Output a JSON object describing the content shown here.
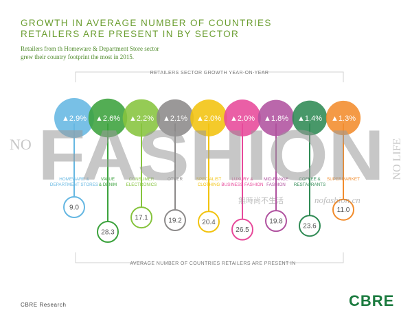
{
  "title_line1": "GROWTH IN AVERAGE NUMBER OF COUNTRIES",
  "title_line2": "RETAILERS ARE PRESENT IN BY SECTOR",
  "subtitle_line1": "Retailers from th Homeware & Department Store sector",
  "subtitle_line2": "grew their country footprint the most in 2015.",
  "watermark": {
    "big_text": "FASHION",
    "left_text": "NO",
    "right_text": "NO LIFE",
    "chinese": "無時尚不生活",
    "site": "nofashion.cn"
  },
  "footer": {
    "source": "CBRE Research",
    "logo": "CBRE"
  },
  "chart_data": {
    "type": "bubble-lollipop",
    "top_label": "RETAILERS SECTOR GROWTH YEAR-ON-YEAR",
    "bottom_label": "AVERAGE NUMBER OF COUNTRIES RETAILERS ARE PRESENT IN",
    "growth_unit": "%",
    "sectors": [
      {
        "label_lines": [
          "HOMEWARE &",
          "DEPARTMENT STORES"
        ],
        "growth": 2.9,
        "growth_label": "▲2.9%",
        "countries": 9.0,
        "countries_label": "9.0",
        "color": "#65b7e2"
      },
      {
        "label_lines": [
          "VALUE",
          "& DENIM"
        ],
        "growth": 2.6,
        "growth_label": "▲2.6%",
        "countries": 28.3,
        "countries_label": "28.3",
        "color": "#3ba23c"
      },
      {
        "label_lines": [
          "CONSUMER",
          "ELECTRONICS"
        ],
        "growth": 2.2,
        "growth_label": "▲2.2%",
        "countries": 17.1,
        "countries_label": "17.1",
        "color": "#86c43e"
      },
      {
        "label_lines": [
          "OTHER"
        ],
        "growth": 2.1,
        "growth_label": "▲2.1%",
        "countries": 19.2,
        "countries_label": "19.2",
        "color": "#8c8a8a"
      },
      {
        "label_lines": [
          "SPECIALIST",
          "CLOTHING"
        ],
        "growth": 2.0,
        "growth_label": "▲2.0%",
        "countries": 20.4,
        "countries_label": "20.4",
        "color": "#f2c30e"
      },
      {
        "label_lines": [
          "LUXURY &",
          "BUSINESS FASHION"
        ],
        "growth": 2.0,
        "growth_label": "▲2.0%",
        "countries": 26.5,
        "countries_label": "26.5",
        "color": "#e7499a"
      },
      {
        "label_lines": [
          "MID-RANGE",
          "FASHION"
        ],
        "growth": 1.8,
        "growth_label": "▲1.8%",
        "countries": 19.8,
        "countries_label": "19.8",
        "color": "#b0529f"
      },
      {
        "label_lines": [
          "COFFEE &",
          "RESTAURANTS"
        ],
        "growth": 1.4,
        "growth_label": "▲1.4%",
        "countries": 23.6,
        "countries_label": "23.6",
        "color": "#2f8a54"
      },
      {
        "label_lines": [
          "SUPERMARKET"
        ],
        "growth": 1.3,
        "growth_label": "▲1.3%",
        "countries": 11.0,
        "countries_label": "11.0",
        "color": "#f28c2c"
      }
    ]
  }
}
